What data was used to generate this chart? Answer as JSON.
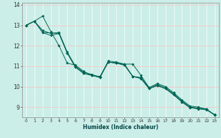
{
  "xlabel": "Humidex (Indice chaleur)",
  "background_color": "#cceee8",
  "line_color": "#006655",
  "marker_color": "#006655",
  "xlim": [
    -0.5,
    23.5
  ],
  "ylim": [
    8.5,
    14.1
  ],
  "yticks": [
    9,
    10,
    11,
    12,
    13,
    14
  ],
  "xticks": [
    0,
    1,
    2,
    3,
    4,
    5,
    6,
    7,
    8,
    9,
    10,
    11,
    12,
    13,
    14,
    15,
    16,
    17,
    18,
    19,
    20,
    21,
    22,
    23
  ],
  "series": [
    {
      "x": [
        0,
        1,
        2,
        3,
        4,
        5,
        6,
        7,
        8,
        9,
        10,
        11,
        12,
        13,
        14,
        15,
        16,
        17,
        18,
        19,
        20,
        21,
        22,
        23
      ],
      "y": [
        13.0,
        13.2,
        13.45,
        12.7,
        12.0,
        11.15,
        11.05,
        10.75,
        10.55,
        10.5,
        11.2,
        11.15,
        11.1,
        11.1,
        10.55,
        9.95,
        10.15,
        10.0,
        9.7,
        9.35,
        9.05,
        9.0,
        8.9,
        8.6
      ]
    },
    {
      "x": [
        0,
        1,
        2,
        3,
        4,
        5,
        6,
        7,
        8,
        9,
        10,
        11,
        12,
        13,
        14,
        15,
        16,
        17,
        18,
        19,
        20,
        21,
        22,
        23
      ],
      "y": [
        13.0,
        13.2,
        12.75,
        12.6,
        12.65,
        11.7,
        11.0,
        10.7,
        10.6,
        10.45,
        11.25,
        11.2,
        11.1,
        10.5,
        10.45,
        9.95,
        10.1,
        9.95,
        9.65,
        9.3,
        9.0,
        8.95,
        8.9,
        8.62
      ]
    },
    {
      "x": [
        0,
        1,
        2,
        3,
        4,
        5,
        6,
        7,
        8,
        9,
        10,
        11,
        12,
        13,
        14,
        15,
        16,
        17,
        18,
        19,
        20,
        21,
        22,
        23
      ],
      "y": [
        13.0,
        13.2,
        12.65,
        12.5,
        12.6,
        11.65,
        10.95,
        10.65,
        10.55,
        10.45,
        11.2,
        11.15,
        11.05,
        10.5,
        10.4,
        9.9,
        10.05,
        9.9,
        9.6,
        9.25,
        8.97,
        8.92,
        8.87,
        8.62
      ]
    },
    {
      "x": [
        0,
        1,
        2,
        4,
        5,
        6,
        7,
        8,
        9,
        10,
        11,
        12,
        13,
        14,
        15,
        16,
        17,
        18,
        19,
        20,
        21,
        22,
        23
      ],
      "y": [
        13.0,
        13.2,
        12.65,
        12.6,
        11.65,
        10.95,
        10.65,
        10.55,
        10.45,
        11.2,
        11.15,
        11.05,
        10.5,
        10.4,
        9.9,
        10.05,
        9.9,
        9.6,
        9.25,
        8.97,
        8.92,
        8.87,
        8.62
      ]
    }
  ]
}
